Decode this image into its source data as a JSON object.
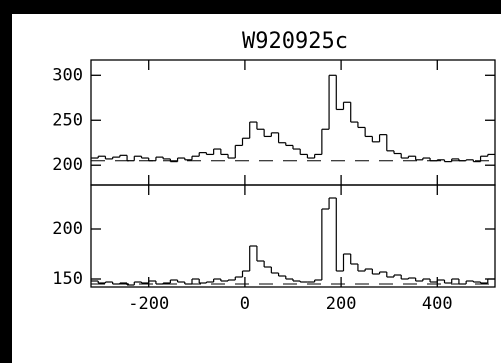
{
  "chart_data": {
    "type": "step",
    "title": "W920925c",
    "x": [
      -320,
      -305,
      -290,
      -275,
      -260,
      -245,
      -230,
      -215,
      -200,
      -185,
      -170,
      -155,
      -140,
      -125,
      -110,
      -95,
      -80,
      -65,
      -50,
      -35,
      -20,
      -5,
      10,
      25,
      40,
      55,
      70,
      85,
      100,
      115,
      130,
      145,
      160,
      175,
      190,
      205,
      220,
      235,
      250,
      265,
      280,
      295,
      310,
      325,
      340,
      355,
      370,
      385,
      400,
      415,
      430,
      445,
      460,
      475,
      490,
      505
    ],
    "xlim": [
      -320,
      520
    ],
    "xticks": [
      -200,
      0,
      200,
      400
    ],
    "panels": [
      {
        "ylim": [
          178,
          317
        ],
        "yticks": [
          200,
          250,
          300
        ],
        "continuum": 205,
        "values": [
          208,
          210,
          207,
          209,
          211,
          205,
          210,
          208,
          205,
          209,
          207,
          204,
          208,
          206,
          210,
          214,
          212,
          218,
          212,
          208,
          222,
          230,
          248,
          240,
          232,
          236,
          225,
          222,
          218,
          212,
          208,
          212,
          240,
          300,
          262,
          270,
          248,
          242,
          232,
          226,
          234,
          216,
          213,
          208,
          210,
          206,
          208,
          205,
          206,
          204,
          207,
          205,
          206,
          204,
          210,
          212
        ]
      },
      {
        "ylim": [
          142,
          244
        ],
        "yticks": [
          150,
          200
        ],
        "continuum": 145,
        "values": [
          148,
          146,
          147,
          145,
          146,
          144,
          147,
          146,
          148,
          145,
          146,
          149,
          147,
          145,
          150,
          146,
          147,
          150,
          148,
          149,
          152,
          158,
          183,
          168,
          162,
          156,
          153,
          150,
          148,
          147,
          147,
          149,
          220,
          231,
          158,
          175,
          165,
          158,
          160,
          155,
          157,
          152,
          154,
          150,
          151,
          148,
          150,
          147,
          149,
          146,
          150,
          145,
          148,
          147,
          146,
          150
        ]
      }
    ]
  }
}
